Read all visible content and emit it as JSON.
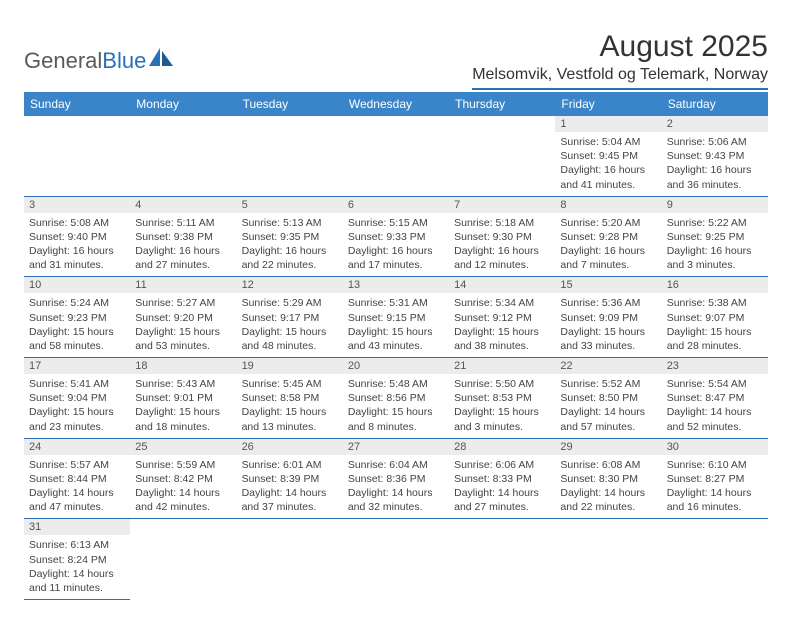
{
  "logo": {
    "text1": "General",
    "text2": "Blue"
  },
  "title": "August 2025",
  "location": "Melsomvik, Vestfold og Telemark, Norway",
  "colors": {
    "header_bg": "#3a85c9",
    "header_border": "#2a70b8",
    "daynum_bg": "#ececec",
    "text": "#444444"
  },
  "dayNames": [
    "Sunday",
    "Monday",
    "Tuesday",
    "Wednesday",
    "Thursday",
    "Friday",
    "Saturday"
  ],
  "weeks": [
    [
      null,
      null,
      null,
      null,
      null,
      {
        "n": "1",
        "sr": "5:04 AM",
        "ss": "9:45 PM",
        "dl": "16 hours and 41 minutes."
      },
      {
        "n": "2",
        "sr": "5:06 AM",
        "ss": "9:43 PM",
        "dl": "16 hours and 36 minutes."
      }
    ],
    [
      {
        "n": "3",
        "sr": "5:08 AM",
        "ss": "9:40 PM",
        "dl": "16 hours and 31 minutes."
      },
      {
        "n": "4",
        "sr": "5:11 AM",
        "ss": "9:38 PM",
        "dl": "16 hours and 27 minutes."
      },
      {
        "n": "5",
        "sr": "5:13 AM",
        "ss": "9:35 PM",
        "dl": "16 hours and 22 minutes."
      },
      {
        "n": "6",
        "sr": "5:15 AM",
        "ss": "9:33 PM",
        "dl": "16 hours and 17 minutes."
      },
      {
        "n": "7",
        "sr": "5:18 AM",
        "ss": "9:30 PM",
        "dl": "16 hours and 12 minutes."
      },
      {
        "n": "8",
        "sr": "5:20 AM",
        "ss": "9:28 PM",
        "dl": "16 hours and 7 minutes."
      },
      {
        "n": "9",
        "sr": "5:22 AM",
        "ss": "9:25 PM",
        "dl": "16 hours and 3 minutes."
      }
    ],
    [
      {
        "n": "10",
        "sr": "5:24 AM",
        "ss": "9:23 PM",
        "dl": "15 hours and 58 minutes."
      },
      {
        "n": "11",
        "sr": "5:27 AM",
        "ss": "9:20 PM",
        "dl": "15 hours and 53 minutes."
      },
      {
        "n": "12",
        "sr": "5:29 AM",
        "ss": "9:17 PM",
        "dl": "15 hours and 48 minutes."
      },
      {
        "n": "13",
        "sr": "5:31 AM",
        "ss": "9:15 PM",
        "dl": "15 hours and 43 minutes."
      },
      {
        "n": "14",
        "sr": "5:34 AM",
        "ss": "9:12 PM",
        "dl": "15 hours and 38 minutes."
      },
      {
        "n": "15",
        "sr": "5:36 AM",
        "ss": "9:09 PM",
        "dl": "15 hours and 33 minutes."
      },
      {
        "n": "16",
        "sr": "5:38 AM",
        "ss": "9:07 PM",
        "dl": "15 hours and 28 minutes."
      }
    ],
    [
      {
        "n": "17",
        "sr": "5:41 AM",
        "ss": "9:04 PM",
        "dl": "15 hours and 23 minutes."
      },
      {
        "n": "18",
        "sr": "5:43 AM",
        "ss": "9:01 PM",
        "dl": "15 hours and 18 minutes."
      },
      {
        "n": "19",
        "sr": "5:45 AM",
        "ss": "8:58 PM",
        "dl": "15 hours and 13 minutes."
      },
      {
        "n": "20",
        "sr": "5:48 AM",
        "ss": "8:56 PM",
        "dl": "15 hours and 8 minutes."
      },
      {
        "n": "21",
        "sr": "5:50 AM",
        "ss": "8:53 PM",
        "dl": "15 hours and 3 minutes."
      },
      {
        "n": "22",
        "sr": "5:52 AM",
        "ss": "8:50 PM",
        "dl": "14 hours and 57 minutes."
      },
      {
        "n": "23",
        "sr": "5:54 AM",
        "ss": "8:47 PM",
        "dl": "14 hours and 52 minutes."
      }
    ],
    [
      {
        "n": "24",
        "sr": "5:57 AM",
        "ss": "8:44 PM",
        "dl": "14 hours and 47 minutes."
      },
      {
        "n": "25",
        "sr": "5:59 AM",
        "ss": "8:42 PM",
        "dl": "14 hours and 42 minutes."
      },
      {
        "n": "26",
        "sr": "6:01 AM",
        "ss": "8:39 PM",
        "dl": "14 hours and 37 minutes."
      },
      {
        "n": "27",
        "sr": "6:04 AM",
        "ss": "8:36 PM",
        "dl": "14 hours and 32 minutes."
      },
      {
        "n": "28",
        "sr": "6:06 AM",
        "ss": "8:33 PM",
        "dl": "14 hours and 27 minutes."
      },
      {
        "n": "29",
        "sr": "6:08 AM",
        "ss": "8:30 PM",
        "dl": "14 hours and 22 minutes."
      },
      {
        "n": "30",
        "sr": "6:10 AM",
        "ss": "8:27 PM",
        "dl": "14 hours and 16 minutes."
      }
    ],
    [
      {
        "n": "31",
        "sr": "6:13 AM",
        "ss": "8:24 PM",
        "dl": "14 hours and 11 minutes."
      },
      null,
      null,
      null,
      null,
      null,
      null
    ]
  ],
  "labels": {
    "sunrise": "Sunrise:",
    "sunset": "Sunset:",
    "daylight": "Daylight:"
  }
}
